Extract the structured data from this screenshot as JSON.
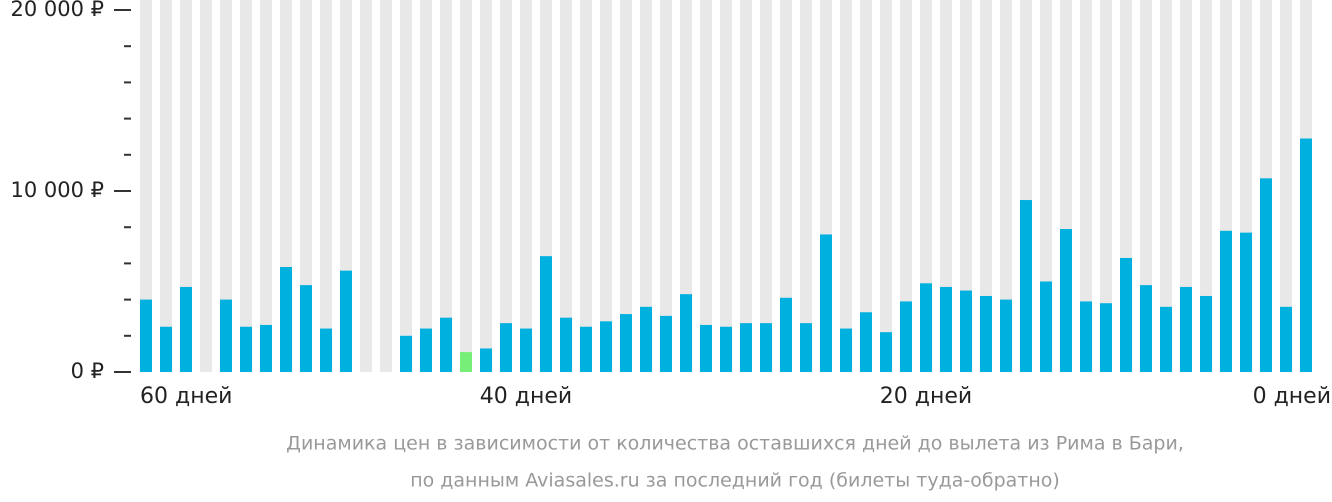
{
  "chart_data": {
    "type": "bar",
    "categories": [
      "60 дней",
      null,
      null,
      null,
      null,
      null,
      null,
      null,
      null,
      null,
      null,
      null,
      null,
      null,
      null,
      null,
      null,
      null,
      null,
      "40 дней",
      null,
      null,
      null,
      null,
      null,
      null,
      null,
      null,
      null,
      null,
      null,
      null,
      null,
      null,
      null,
      null,
      null,
      null,
      null,
      "20 дней",
      null,
      null,
      null,
      null,
      null,
      null,
      null,
      null,
      null,
      null,
      null,
      null,
      null,
      null,
      null,
      null,
      null,
      null,
      "0 дней"
    ],
    "values": [
      4000,
      2500,
      4700,
      null,
      4000,
      2500,
      2600,
      5800,
      4800,
      2400,
      5600,
      null,
      null,
      2000,
      2400,
      3000,
      1100,
      1300,
      2700,
      2400,
      6400,
      3000,
      2500,
      2800,
      3200,
      3600,
      3100,
      4300,
      2600,
      2500,
      2700,
      2700,
      4100,
      2700,
      7600,
      2400,
      3300,
      2200,
      3900,
      4900,
      4700,
      4500,
      4200,
      4000,
      9500,
      5000,
      7900,
      3900,
      3800,
      6300,
      4800,
      3600,
      4700,
      4200,
      7800,
      7700,
      10700,
      3600,
      12900
    ],
    "color": "#00b0de",
    "highlight_color": "#77ee77",
    "highlight_index": 16,
    "ylim": [
      0,
      20000
    ],
    "yticks": [
      {
        "value": 0,
        "label": "0 ₽"
      },
      {
        "value": 10000,
        "label": "10 000 ₽"
      },
      {
        "value": 20000,
        "label": "20 000 ₽"
      }
    ],
    "minor_yticks": [
      2000,
      4000,
      6000,
      8000,
      12000,
      14000,
      16000,
      18000
    ],
    "caption": [
      "Динамика цен в зависимости от количества оставшихся дней до вылета из Рима в Бари,",
      "по данным Aviasales.ru за последний год (билеты туда-обратно)"
    ]
  }
}
